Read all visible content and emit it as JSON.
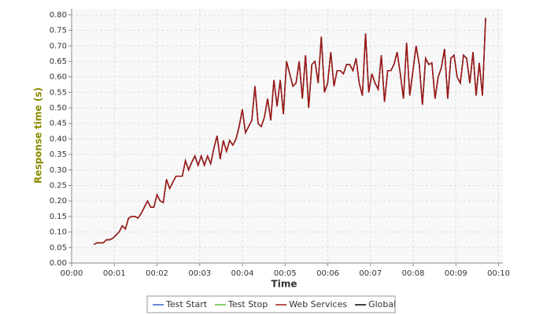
{
  "chart_data": {
    "type": "line",
    "xlabel": "Time",
    "ylabel": "Response time (s)",
    "xlim": [
      0,
      10.1
    ],
    "ylim": [
      0,
      0.82
    ],
    "xticks": [
      {
        "value": 0,
        "label": "00:00"
      },
      {
        "value": 1,
        "label": "00:01"
      },
      {
        "value": 2,
        "label": "00:02"
      },
      {
        "value": 3,
        "label": "00:03"
      },
      {
        "value": 4,
        "label": "00:04"
      },
      {
        "value": 5,
        "label": "00:05"
      },
      {
        "value": 6,
        "label": "00:06"
      },
      {
        "value": 7,
        "label": "00:07"
      },
      {
        "value": 8,
        "label": "00:08"
      },
      {
        "value": 9,
        "label": "00:09"
      },
      {
        "value": 10,
        "label": "00:10"
      }
    ],
    "yticks": [
      {
        "value": 0,
        "label": "0.00"
      },
      {
        "value": 0.05,
        "label": "0.05"
      },
      {
        "value": 0.1,
        "label": "0.10"
      },
      {
        "value": 0.15,
        "label": "0.15"
      },
      {
        "value": 0.2,
        "label": "0.20"
      },
      {
        "value": 0.25,
        "label": "0.25"
      },
      {
        "value": 0.3,
        "label": "0.30"
      },
      {
        "value": 0.35,
        "label": "0.35"
      },
      {
        "value": 0.4,
        "label": "0.40"
      },
      {
        "value": 0.45,
        "label": "0.45"
      },
      {
        "value": 0.5,
        "label": "0.50"
      },
      {
        "value": 0.55,
        "label": "0.55"
      },
      {
        "value": 0.6,
        "label": "0.60"
      },
      {
        "value": 0.65,
        "label": "0.65"
      },
      {
        "value": 0.7,
        "label": "0.70"
      },
      {
        "value": 0.75,
        "label": "0.75"
      },
      {
        "value": 0.8,
        "label": "0.80"
      }
    ],
    "grid": true,
    "x": [
      0.52,
      0.594,
      0.668,
      0.742,
      0.816,
      0.89,
      0.964,
      1.038,
      1.112,
      1.186,
      1.26,
      1.334,
      1.408,
      1.482,
      1.556,
      1.63,
      1.704,
      1.778,
      1.852,
      1.926,
      2.0,
      2.074,
      2.148,
      2.222,
      2.296,
      2.37,
      2.444,
      2.518,
      2.592,
      2.666,
      2.74,
      2.814,
      2.888,
      2.962,
      3.036,
      3.11,
      3.184,
      3.258,
      3.332,
      3.406,
      3.48,
      3.554,
      3.628,
      3.702,
      3.776,
      3.85,
      3.924,
      3.998,
      4.072,
      4.146,
      4.22,
      4.294,
      4.368,
      4.442,
      4.516,
      4.59,
      4.664,
      4.738,
      4.812,
      4.886,
      4.96,
      5.034,
      5.108,
      5.182,
      5.256,
      5.33,
      5.404,
      5.478,
      5.552,
      5.626,
      5.7,
      5.774,
      5.848,
      5.922,
      5.996,
      6.07,
      6.144,
      6.218,
      6.292,
      6.366,
      6.44,
      6.514,
      6.588,
      6.662,
      6.736,
      6.81,
      6.884,
      6.958,
      7.032,
      7.106,
      7.18,
      7.254,
      7.328,
      7.402,
      7.476,
      7.55,
      7.624,
      7.698,
      7.772,
      7.846,
      7.92,
      7.994,
      8.068,
      8.142,
      8.216,
      8.29,
      8.364,
      8.438,
      8.512,
      8.586,
      8.66,
      8.734,
      8.808,
      8.882,
      8.956,
      9.03,
      9.104,
      9.178,
      9.252,
      9.326,
      9.4,
      9.474,
      9.548,
      9.622,
      9.696
    ],
    "series": [
      {
        "name": "Test Start",
        "color": "#3366cc"
      },
      {
        "name": "Test Stop",
        "color": "#66bb44"
      },
      {
        "name": "Web Services",
        "color": "#a01818",
        "values": [
          0.06,
          0.065,
          0.065,
          0.065,
          0.075,
          0.075,
          0.08,
          0.09,
          0.1,
          0.12,
          0.11,
          0.145,
          0.15,
          0.15,
          0.145,
          0.16,
          0.18,
          0.2,
          0.18,
          0.18,
          0.22,
          0.2,
          0.195,
          0.27,
          0.24,
          0.26,
          0.28,
          0.28,
          0.28,
          0.33,
          0.3,
          0.325,
          0.345,
          0.315,
          0.345,
          0.315,
          0.345,
          0.32,
          0.37,
          0.41,
          0.335,
          0.395,
          0.36,
          0.395,
          0.38,
          0.4,
          0.44,
          0.495,
          0.42,
          0.44,
          0.46,
          0.57,
          0.45,
          0.44,
          0.47,
          0.53,
          0.46,
          0.59,
          0.505,
          0.59,
          0.48,
          0.65,
          0.61,
          0.57,
          0.58,
          0.65,
          0.53,
          0.67,
          0.5,
          0.64,
          0.65,
          0.58,
          0.73,
          0.55,
          0.58,
          0.68,
          0.57,
          0.62,
          0.62,
          0.61,
          0.64,
          0.64,
          0.62,
          0.66,
          0.58,
          0.54,
          0.74,
          0.55,
          0.61,
          0.58,
          0.56,
          0.67,
          0.52,
          0.62,
          0.62,
          0.64,
          0.68,
          0.61,
          0.53,
          0.71,
          0.54,
          0.62,
          0.7,
          0.64,
          0.51,
          0.66,
          0.64,
          0.645,
          0.53,
          0.6,
          0.63,
          0.69,
          0.53,
          0.66,
          0.67,
          0.6,
          0.58,
          0.67,
          0.66,
          0.58,
          0.68,
          0.54,
          0.645,
          0.54,
          0.79
        ]
      },
      {
        "name": "Global",
        "color": "#000000",
        "values": [
          0.06,
          0.065,
          0.065,
          0.065,
          0.075,
          0.075,
          0.08,
          0.09,
          0.1,
          0.12,
          0.11,
          0.145,
          0.15,
          0.15,
          0.145,
          0.16,
          0.18,
          0.2,
          0.18,
          0.18,
          0.22,
          0.2,
          0.195,
          0.27,
          0.24,
          0.26,
          0.28,
          0.28,
          0.28,
          0.33,
          0.3,
          0.325,
          0.345,
          0.315,
          0.345,
          0.315,
          0.345,
          0.32,
          0.37,
          0.41,
          0.335,
          0.395,
          0.36,
          0.395,
          0.38,
          0.4,
          0.44,
          0.495,
          0.42,
          0.44,
          0.46,
          0.57,
          0.45,
          0.44,
          0.47,
          0.53,
          0.46,
          0.59,
          0.505,
          0.59,
          0.48,
          0.65,
          0.61,
          0.57,
          0.58,
          0.65,
          0.53,
          0.67,
          0.5,
          0.64,
          0.65,
          0.58,
          0.73,
          0.55,
          0.58,
          0.68,
          0.57,
          0.62,
          0.62,
          0.61,
          0.64,
          0.64,
          0.62,
          0.66,
          0.58,
          0.54,
          0.74,
          0.55,
          0.61,
          0.58,
          0.56,
          0.67,
          0.52,
          0.62,
          0.62,
          0.64,
          0.68,
          0.61,
          0.53,
          0.71,
          0.54,
          0.62,
          0.7,
          0.64,
          0.51,
          0.66,
          0.64,
          0.645,
          0.53,
          0.6,
          0.63,
          0.69,
          0.53,
          0.66,
          0.67,
          0.6,
          0.58,
          0.67,
          0.66,
          0.58,
          0.68,
          0.54,
          0.645,
          0.54,
          0.79
        ]
      }
    ]
  }
}
